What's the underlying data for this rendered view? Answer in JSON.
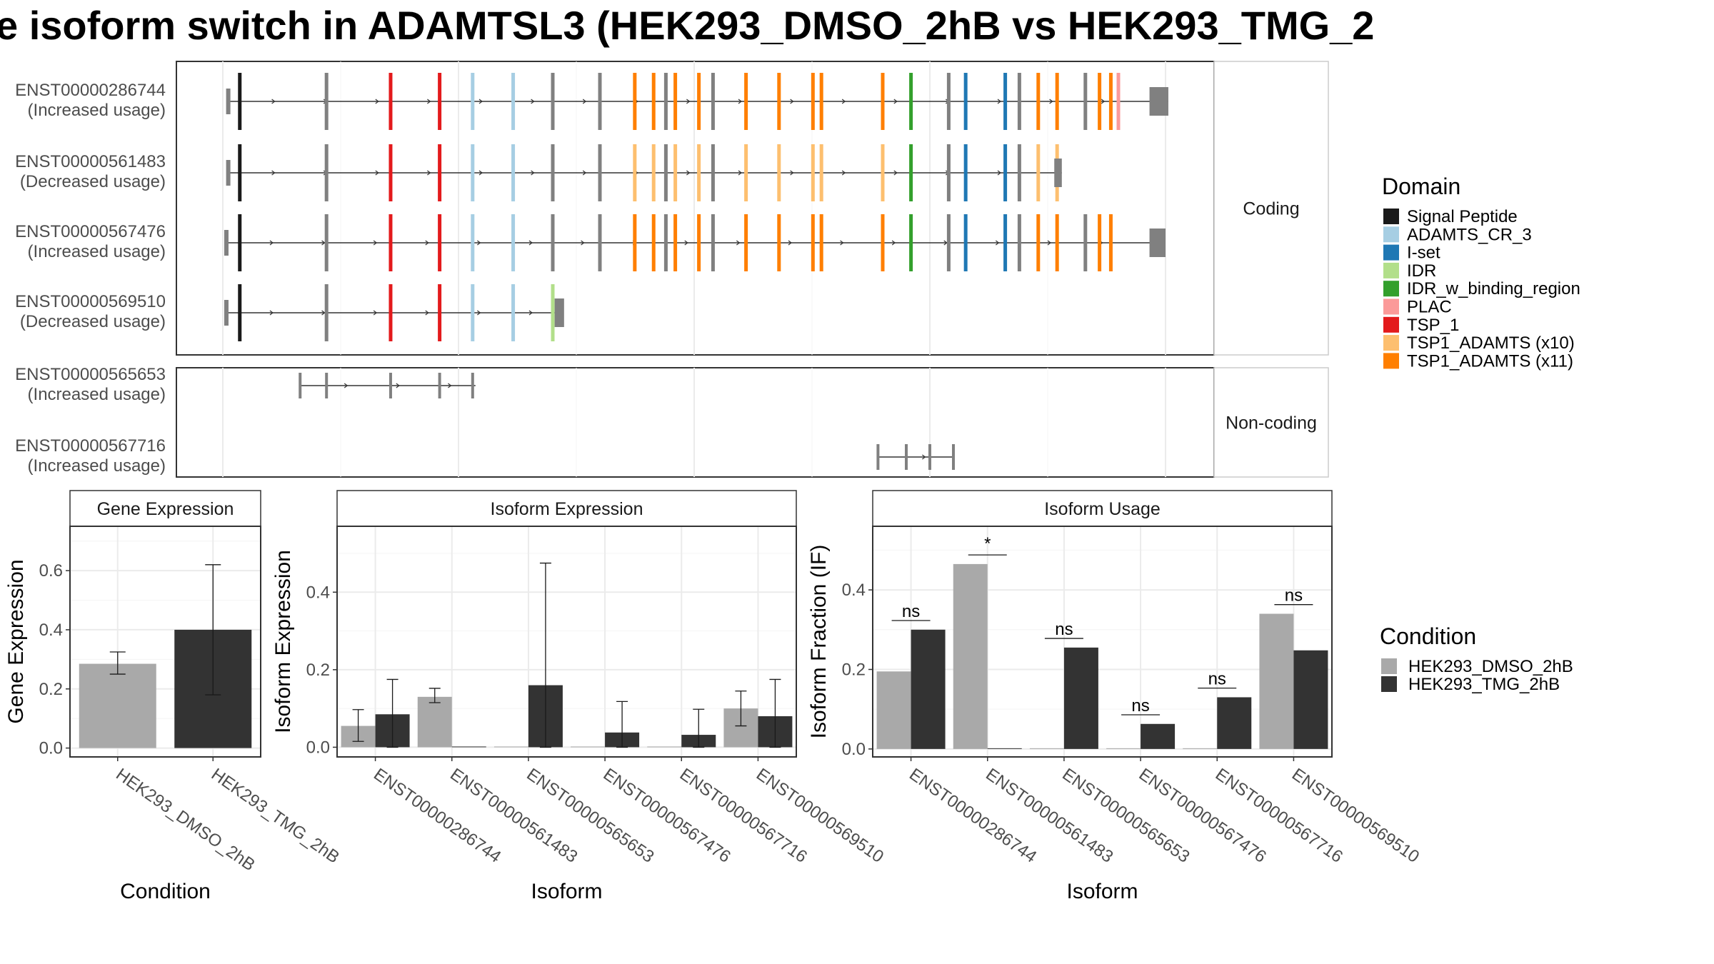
{
  "title": "e isoform switch in ADAMTSL3 (HEK293_DMSO_2hB vs HEK293_TMG_2",
  "chart_data": [
    {
      "type": "gene-structure",
      "x_range": [
        0,
        1000
      ],
      "facets": [
        {
          "label": "Coding",
          "transcripts": [
            {
              "id": "ENST00000286744",
              "status": "(Increased usage)",
              "start": 5,
              "end": 1003,
              "cds_start": 18,
              "cds_end": 973,
              "tail": [
                983,
                1003
              ],
              "exons": [
                [
                  18,
                  "#1a1a1a"
                ],
                [
                  110,
                  "#808080"
                ],
                [
                  178,
                  "#e31a1c"
                ],
                [
                  230,
                  "#e31a1c"
                ],
                [
                  265,
                  "#a6cee3"
                ],
                [
                  308,
                  "#a6cee3"
                ],
                [
                  350,
                  "#808080"
                ],
                [
                  400,
                  "#808080"
                ],
                [
                  437,
                  "#ff7f00"
                ],
                [
                  457,
                  "#ff7f00"
                ],
                [
                  470,
                  "#808080"
                ],
                [
                  480,
                  "#ff7f00"
                ],
                [
                  505,
                  "#ff7f00"
                ],
                [
                  520,
                  "#808080"
                ],
                [
                  555,
                  "#ff7f00"
                ],
                [
                  590,
                  "#ff7f00"
                ],
                [
                  626,
                  "#ff7f00"
                ],
                [
                  635,
                  "#ff7f00"
                ],
                [
                  700,
                  "#ff7f00"
                ],
                [
                  730,
                  "#33a02c"
                ],
                [
                  770,
                  "#808080"
                ],
                [
                  788,
                  "#1f78b4"
                ],
                [
                  830,
                  "#1f78b4"
                ],
                [
                  845,
                  "#808080"
                ],
                [
                  865,
                  "#ff7f00"
                ],
                [
                  885,
                  "#ff7f00"
                ],
                [
                  915,
                  "#808080"
                ],
                [
                  930,
                  "#ff7f00"
                ],
                [
                  942,
                  "#ff7f00"
                ],
                [
                  950,
                  "#fb9a99"
                ]
              ]
            },
            {
              "id": "ENST00000561483",
              "status": "(Decreased usage)",
              "start": 5,
              "end": 890,
              "cds_start": 18,
              "cds_end": 880,
              "tail": [
                882,
                890
              ],
              "exons": [
                [
                  18,
                  "#1a1a1a"
                ],
                [
                  110,
                  "#808080"
                ],
                [
                  178,
                  "#e31a1c"
                ],
                [
                  230,
                  "#e31a1c"
                ],
                [
                  265,
                  "#a6cee3"
                ],
                [
                  308,
                  "#a6cee3"
                ],
                [
                  350,
                  "#808080"
                ],
                [
                  400,
                  "#808080"
                ],
                [
                  437,
                  "#fdbf6f"
                ],
                [
                  457,
                  "#fdbf6f"
                ],
                [
                  470,
                  "#808080"
                ],
                [
                  480,
                  "#fdbf6f"
                ],
                [
                  505,
                  "#fdbf6f"
                ],
                [
                  520,
                  "#808080"
                ],
                [
                  555,
                  "#fdbf6f"
                ],
                [
                  590,
                  "#fdbf6f"
                ],
                [
                  626,
                  "#fdbf6f"
                ],
                [
                  635,
                  "#fdbf6f"
                ],
                [
                  700,
                  "#fdbf6f"
                ],
                [
                  730,
                  "#33a02c"
                ],
                [
                  770,
                  "#808080"
                ],
                [
                  788,
                  "#1f78b4"
                ],
                [
                  830,
                  "#1f78b4"
                ],
                [
                  845,
                  "#808080"
                ],
                [
                  865,
                  "#fdbf6f"
                ],
                [
                  885,
                  "#fdbf6f"
                ]
              ]
            },
            {
              "id": "ENST00000567476",
              "status": "(Increased usage)",
              "start": 3,
              "end": 1000,
              "cds_start": 18,
              "cds_end": 973,
              "tail": [
                983,
                1000
              ],
              "exons": [
                [
                  18,
                  "#1a1a1a"
                ],
                [
                  110,
                  "#808080"
                ],
                [
                  178,
                  "#e31a1c"
                ],
                [
                  230,
                  "#e31a1c"
                ],
                [
                  265,
                  "#a6cee3"
                ],
                [
                  308,
                  "#a6cee3"
                ],
                [
                  350,
                  "#808080"
                ],
                [
                  400,
                  "#808080"
                ],
                [
                  437,
                  "#ff7f00"
                ],
                [
                  457,
                  "#ff7f00"
                ],
                [
                  470,
                  "#808080"
                ],
                [
                  480,
                  "#ff7f00"
                ],
                [
                  505,
                  "#ff7f00"
                ],
                [
                  520,
                  "#808080"
                ],
                [
                  555,
                  "#ff7f00"
                ],
                [
                  590,
                  "#ff7f00"
                ],
                [
                  626,
                  "#ff7f00"
                ],
                [
                  635,
                  "#ff7f00"
                ],
                [
                  700,
                  "#ff7f00"
                ],
                [
                  730,
                  "#33a02c"
                ],
                [
                  770,
                  "#808080"
                ],
                [
                  788,
                  "#1f78b4"
                ],
                [
                  830,
                  "#1f78b4"
                ],
                [
                  845,
                  "#808080"
                ],
                [
                  865,
                  "#ff7f00"
                ],
                [
                  885,
                  "#ff7f00"
                ],
                [
                  915,
                  "#808080"
                ],
                [
                  930,
                  "#ff7f00"
                ],
                [
                  942,
                  "#ff7f00"
                ]
              ]
            },
            {
              "id": "ENST00000569510",
              "status": "(Decreased usage)",
              "start": 3,
              "end": 360,
              "cds_start": 18,
              "cds_end": 352,
              "tail": [
                352,
                362
              ],
              "exons": [
                [
                  18,
                  "#1a1a1a"
                ],
                [
                  110,
                  "#808080"
                ],
                [
                  178,
                  "#e31a1c"
                ],
                [
                  230,
                  "#e31a1c"
                ],
                [
                  265,
                  "#a6cee3"
                ],
                [
                  308,
                  "#a6cee3"
                ],
                [
                  350,
                  "#b2df8a"
                ]
              ]
            }
          ]
        },
        {
          "label": "Non-coding",
          "transcripts": [
            {
              "id": "ENST00000565653",
              "status": "(Increased usage)",
              "start": 82,
              "end": 268,
              "exons": [
                [
                  82,
                  "#808080"
                ],
                [
                  110,
                  "#808080"
                ],
                [
                  178,
                  "#808080"
                ],
                [
                  230,
                  "#808080"
                ],
                [
                  265,
                  "#808080"
                ]
              ]
            },
            {
              "id": "ENST00000567716",
              "status": "(Increased usage)",
              "start": 695,
              "end": 775,
              "exons": [
                [
                  695,
                  "#808080"
                ],
                [
                  725,
                  "#808080"
                ],
                [
                  750,
                  "#808080"
                ],
                [
                  775,
                  "#808080"
                ]
              ]
            }
          ]
        }
      ],
      "legend": {
        "title": "Domain",
        "items": [
          {
            "name": "Signal Peptide",
            "color": "#1a1a1a"
          },
          {
            "name": "ADAMTS_CR_3",
            "color": "#a6cee3"
          },
          {
            "name": "I-set",
            "color": "#1f78b4"
          },
          {
            "name": "IDR",
            "color": "#b2df8a"
          },
          {
            "name": "IDR_w_binding_region",
            "color": "#33a02c"
          },
          {
            "name": "PLAC",
            "color": "#fb9a99"
          },
          {
            "name": "TSP_1",
            "color": "#e31a1c"
          },
          {
            "name": "TSP1_ADAMTS (x10)",
            "color": "#fdbf6f"
          },
          {
            "name": "TSP1_ADAMTS (x11)",
            "color": "#ff7f00"
          }
        ]
      }
    },
    {
      "type": "bar",
      "strip": "Gene Expression",
      "xlabel": "Condition",
      "ylabel": "Gene Expression",
      "ylim": [
        -0.03,
        0.75
      ],
      "yticks": [
        0.0,
        0.2,
        0.4,
        0.6
      ],
      "categories": [
        "HEK293_DMSO_2hB",
        "HEK293_TMG_2hB"
      ],
      "values": [
        0.285,
        0.4
      ],
      "error_low": [
        0.25,
        0.18
      ],
      "error_high": [
        0.325,
        0.62
      ],
      "colors": [
        "#a9a9a9",
        "#333333"
      ]
    },
    {
      "type": "bar",
      "strip": "Isoform Expression",
      "xlabel": "Isoform",
      "ylabel": "Isoform Expression",
      "ylim": [
        -0.025,
        0.57
      ],
      "yticks": [
        0.0,
        0.2,
        0.4
      ],
      "categories": [
        "ENST00000286744",
        "ENST00000561483",
        "ENST00000565653",
        "ENST00000567476",
        "ENST00000567716",
        "ENST00000569510"
      ],
      "series": [
        {
          "name": "HEK293_DMSO_2hB",
          "color": "#a9a9a9",
          "values": [
            0.055,
            0.13,
            0.0,
            0.0,
            0.0,
            0.1
          ],
          "error_low": [
            0.015,
            0.115,
            null,
            null,
            null,
            0.055
          ],
          "error_high": [
            0.097,
            0.152,
            null,
            null,
            null,
            0.145
          ]
        },
        {
          "name": "HEK293_TMG_2hB",
          "color": "#333333",
          "values": [
            0.085,
            0.0,
            0.16,
            0.038,
            0.032,
            0.08
          ],
          "error_low": [
            0.0,
            null,
            0.0,
            0.0,
            0.0,
            0.0
          ],
          "error_high": [
            0.175,
            null,
            0.475,
            0.118,
            0.098,
            0.175
          ]
        }
      ]
    },
    {
      "type": "bar",
      "strip": "Isoform Usage",
      "xlabel": "Isoform",
      "ylabel": "Isoform Fraction (IF)",
      "ylim": [
        -0.02,
        0.56
      ],
      "yticks": [
        0.0,
        0.2,
        0.4
      ],
      "categories": [
        "ENST00000286744",
        "ENST00000561483",
        "ENST00000565653",
        "ENST00000567476",
        "ENST00000567716",
        "ENST00000569510"
      ],
      "series": [
        {
          "name": "HEK293_DMSO_2hB",
          "color": "#a9a9a9",
          "values": [
            0.195,
            0.465,
            0.0,
            0.0,
            0.0,
            0.34
          ]
        },
        {
          "name": "HEK293_TMG_2hB",
          "color": "#333333",
          "values": [
            0.3,
            0.0,
            0.255,
            0.063,
            0.13,
            0.248
          ]
        }
      ],
      "annotations": [
        {
          "category": "ENST00000286744",
          "label": "ns",
          "y": 0.323
        },
        {
          "category": "ENST00000561483",
          "label": "*",
          "y": 0.488
        },
        {
          "category": "ENST00000565653",
          "label": "ns",
          "y": 0.278
        },
        {
          "category": "ENST00000567476",
          "label": "ns",
          "y": 0.086
        },
        {
          "category": "ENST00000567716",
          "label": "ns",
          "y": 0.153
        },
        {
          "category": "ENST00000569510",
          "label": "ns",
          "y": 0.363
        }
      ],
      "legend": {
        "title": "Condition",
        "items": [
          {
            "name": "HEK293_DMSO_2hB",
            "color": "#a9a9a9"
          },
          {
            "name": "HEK293_TMG_2hB",
            "color": "#333333"
          }
        ]
      }
    }
  ]
}
